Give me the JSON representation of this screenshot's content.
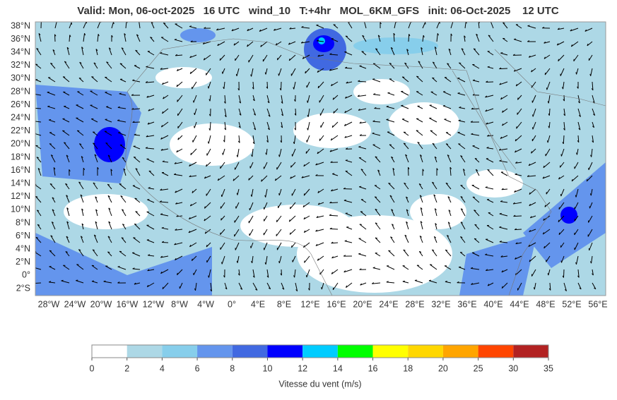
{
  "header": {
    "title": "Valid: Mon, 06-oct-2025   16 UTC   wind_10   T:+4hr   MOL_6KM_GFS   init: 06-Oct-2025    12 UTC"
  },
  "map": {
    "lat_labels": [
      "38°N",
      "36°N",
      "34°N",
      "32°N",
      "30°N",
      "28°N",
      "26°N",
      "24°N",
      "22°N",
      "20°N",
      "18°N",
      "16°N",
      "14°N",
      "12°N",
      "10°N",
      "8°N",
      "6°N",
      "4°N",
      "2°N",
      "0°",
      "2°S"
    ],
    "lon_labels": [
      "28°W",
      "24°W",
      "20°W",
      "16°W",
      "12°W",
      "8°W",
      "4°W",
      "0°",
      "4°E",
      "8°E",
      "12°E",
      "16°E",
      "20°E",
      "24°E",
      "28°E",
      "32°E",
      "36°E",
      "40°E",
      "44°E",
      "48°E",
      "52°E",
      "56°E"
    ]
  },
  "colorbar": {
    "ticks": [
      "0",
      "2",
      "4",
      "6",
      "8",
      "10",
      "12",
      "14",
      "16",
      "18",
      "20",
      "25",
      "30",
      "35"
    ],
    "colors": [
      "#ffffff",
      "#add8e6",
      "#87ceeb",
      "#6495ed",
      "#4169e1",
      "#0000ff",
      "#00ccff",
      "#00ff00",
      "#ffff00",
      "#ffd700",
      "#ffa500",
      "#ff4500",
      "#b22222"
    ],
    "label": "Vitesse du vent (m/s)"
  }
}
